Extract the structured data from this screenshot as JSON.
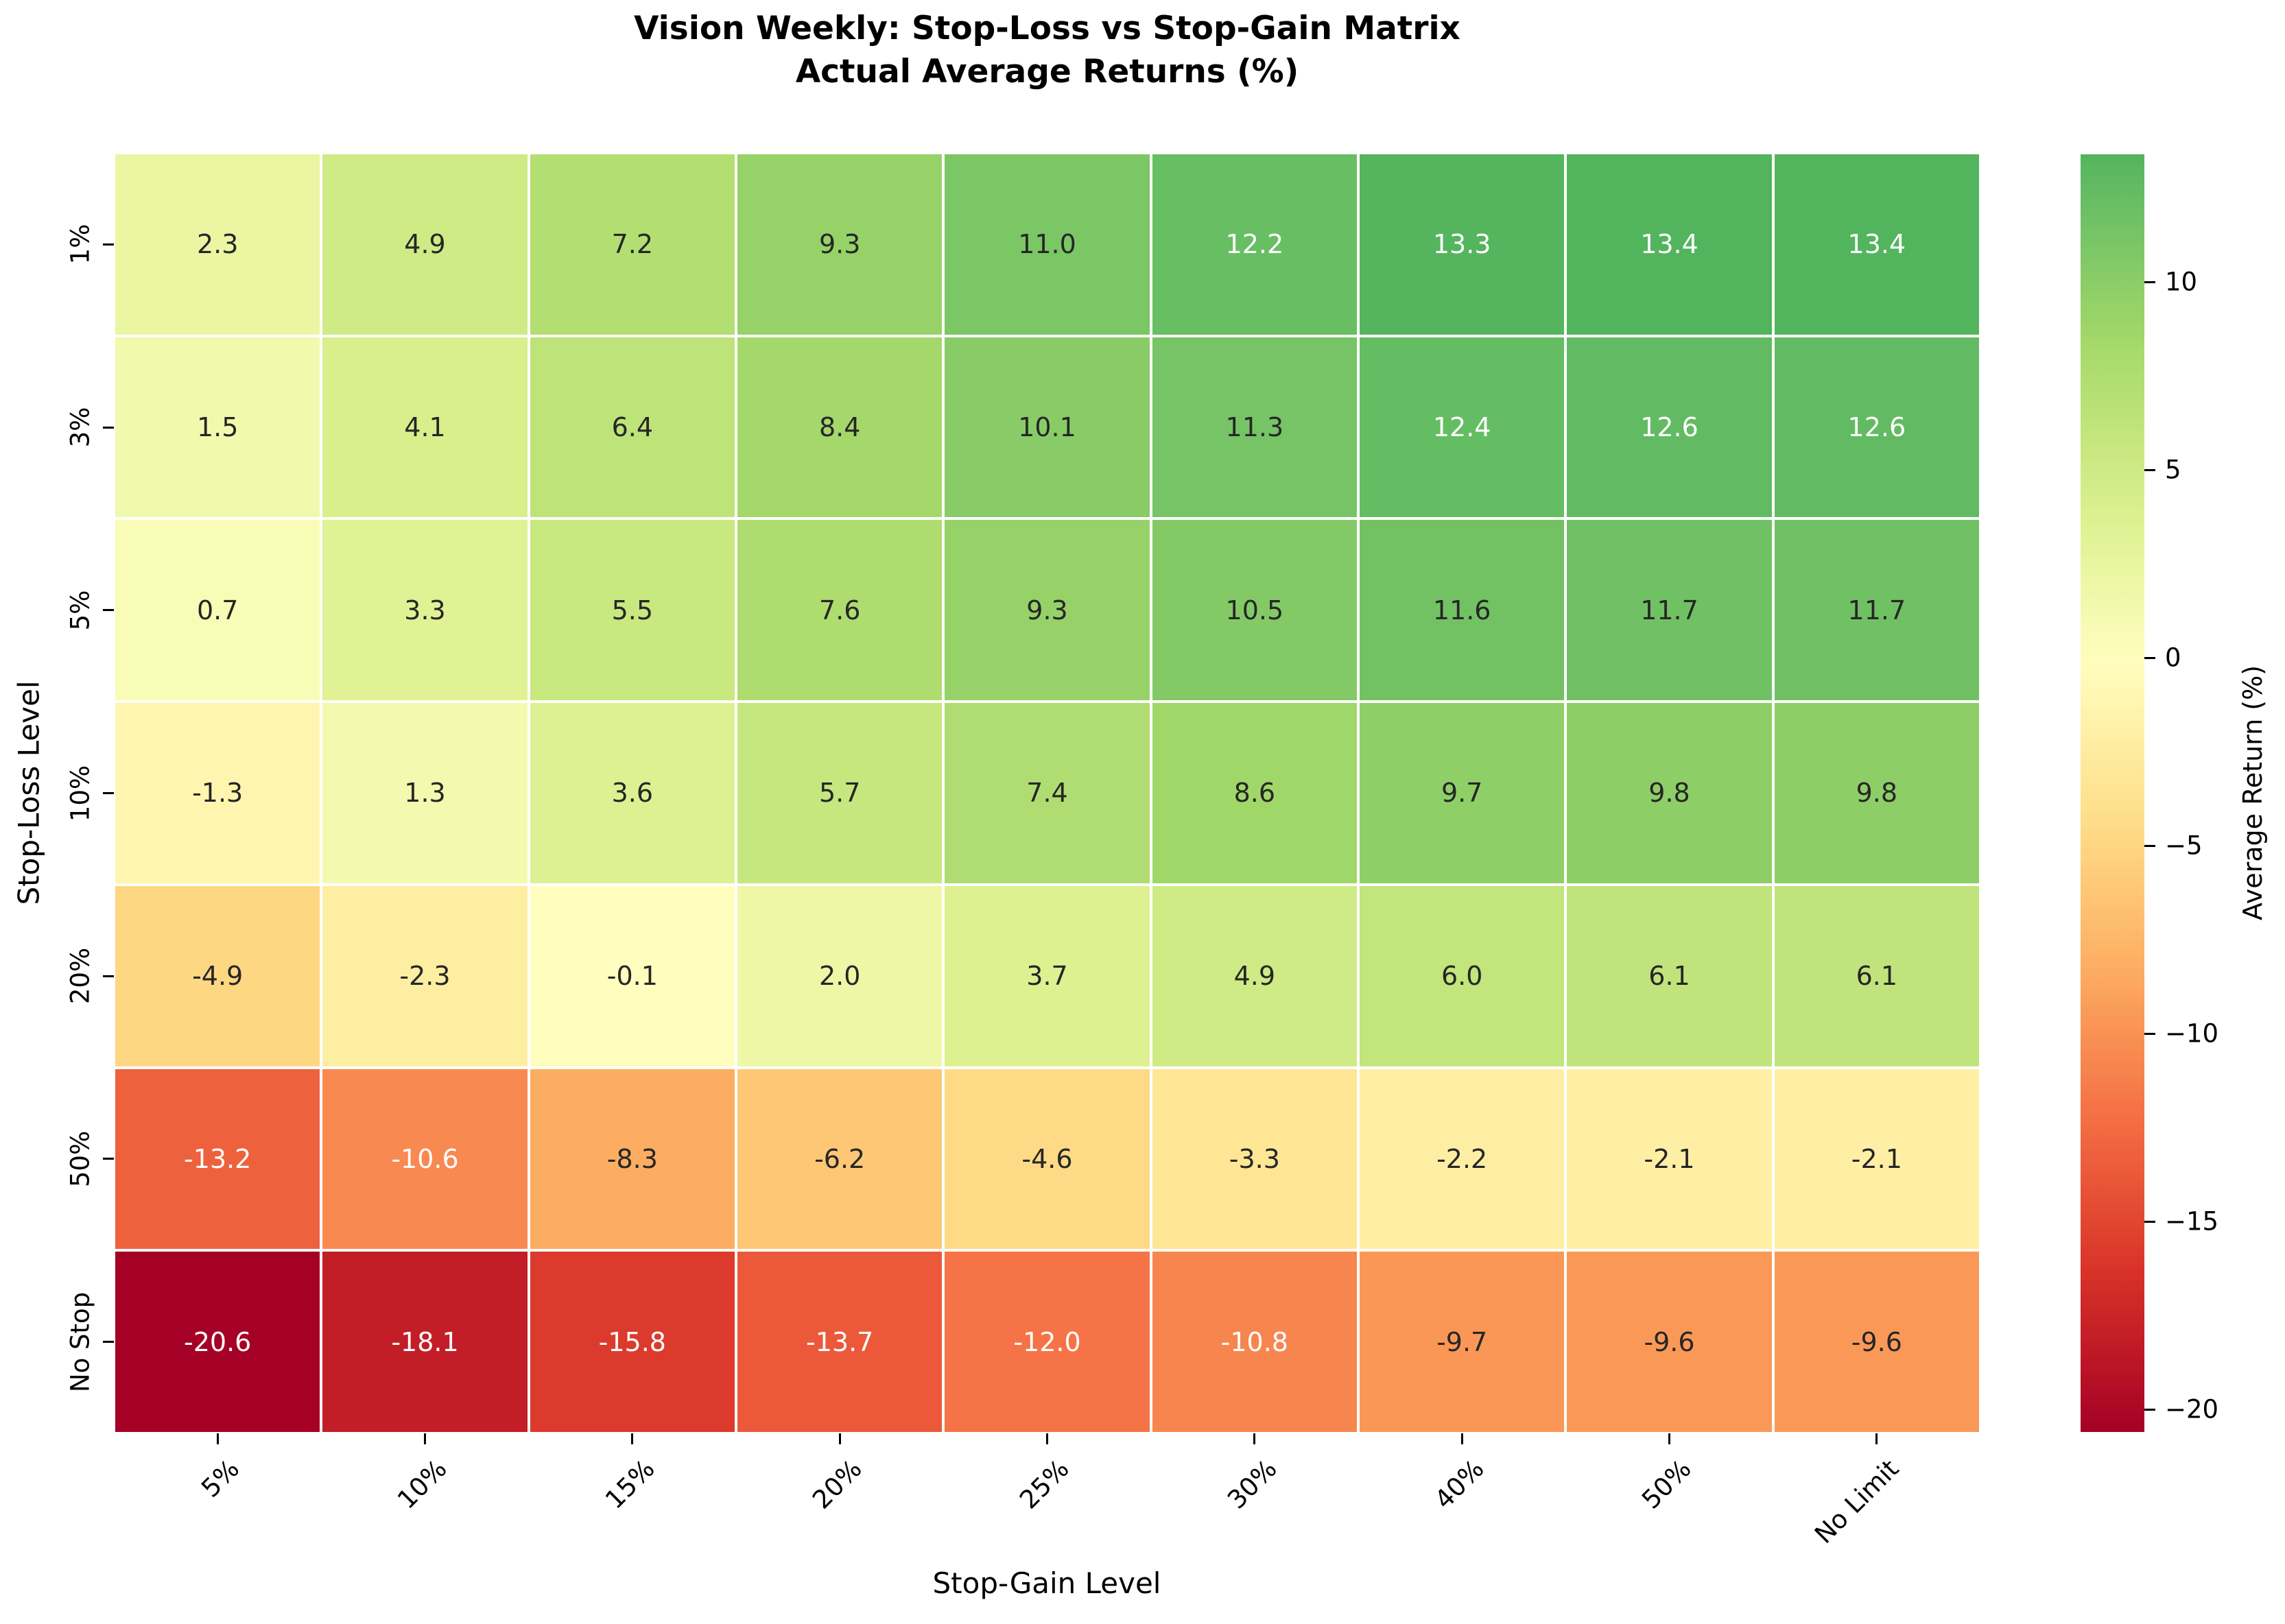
{
  "chart_data": {
    "type": "heatmap",
    "title": "Vision Weekly: Stop-Loss vs Stop-Gain Matrix",
    "subtitle": "Actual Average Returns (%)",
    "xlabel": "Stop-Gain Level",
    "ylabel": "Stop-Loss Level",
    "x_categories": [
      "5%",
      "10%",
      "15%",
      "20%",
      "25%",
      "30%",
      "40%",
      "50%",
      "No Limit"
    ],
    "y_categories": [
      "1%",
      "3%",
      "5%",
      "10%",
      "20%",
      "50%",
      "No Stop"
    ],
    "values": [
      [
        2.3,
        4.9,
        7.2,
        9.3,
        11.0,
        12.2,
        13.3,
        13.4,
        13.4
      ],
      [
        1.5,
        4.1,
        6.4,
        8.4,
        10.1,
        11.3,
        12.4,
        12.6,
        12.6
      ],
      [
        0.7,
        3.3,
        5.5,
        7.6,
        9.3,
        10.5,
        11.6,
        11.7,
        11.7
      ],
      [
        -1.3,
        1.3,
        3.6,
        5.7,
        7.4,
        8.6,
        9.7,
        9.8,
        9.8
      ],
      [
        -4.9,
        -2.3,
        -0.1,
        2.0,
        3.7,
        4.9,
        6.0,
        6.1,
        6.1
      ],
      [
        -13.2,
        -10.6,
        -8.3,
        -6.2,
        -4.6,
        -3.3,
        -2.2,
        -2.1,
        -2.1
      ],
      [
        -20.6,
        -18.1,
        -15.8,
        -13.7,
        -12.0,
        -10.8,
        -9.7,
        -9.6,
        -9.6
      ]
    ],
    "annotation_format": ".1f",
    "colormap": "RdYlGn",
    "color_normalization": {
      "vmin": -20.6,
      "vmax": 13.4,
      "center": 0
    },
    "grid": "white cell separators",
    "colorbar": {
      "label": "Average Return (%)",
      "position": "right",
      "ticks": [
        10,
        5,
        0,
        -5,
        -10,
        -15,
        -20
      ],
      "tick_labels": [
        "10",
        "5",
        "0",
        "−5",
        "−10",
        "−15",
        "−20"
      ]
    }
  },
  "colors": {
    "background": "#ffffff",
    "colormap_anchors": [
      "#a50026",
      "#d73027",
      "#f46d43",
      "#fdae61",
      "#fee08b",
      "#ffffbf",
      "#d9ef8b",
      "#a6d96a",
      "#66bd63",
      "#1a9850",
      "#006837"
    ],
    "annotation_dark": "#262626",
    "annotation_light": "#ffffff",
    "tick_color": "#000000"
  }
}
